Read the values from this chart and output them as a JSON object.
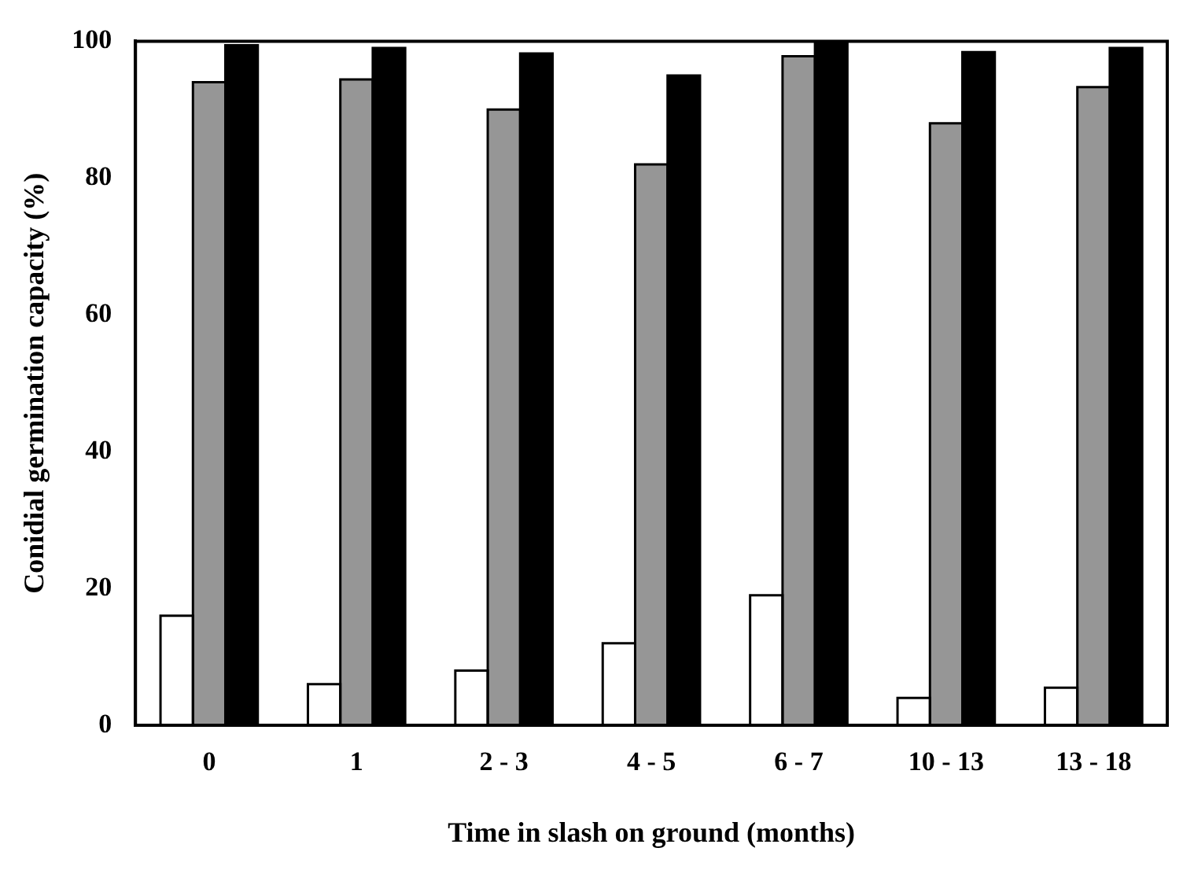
{
  "chart_data": {
    "type": "bar",
    "xlabel": "Time in slash on ground (months)",
    "ylabel": "Conidial germination capacity (%)",
    "categories": [
      "0",
      "1",
      "2 - 3",
      "4 - 5",
      "6 - 7",
      "10 - 13",
      "13 - 18"
    ],
    "series": [
      {
        "color": "#ffffff",
        "values": [
          16,
          6,
          8,
          12,
          19,
          4,
          5.5
        ]
      },
      {
        "color": "#969696",
        "values": [
          94,
          94.4,
          90,
          82,
          97.8,
          88,
          93.3
        ]
      },
      {
        "color": "#000000",
        "values": [
          99.4,
          99,
          98.2,
          95,
          100,
          98.4,
          99
        ]
      }
    ],
    "ylim": [
      0,
      100
    ],
    "yticks": [
      0,
      20,
      40,
      60,
      80,
      100
    ],
    "grid": false,
    "legend": false
  }
}
